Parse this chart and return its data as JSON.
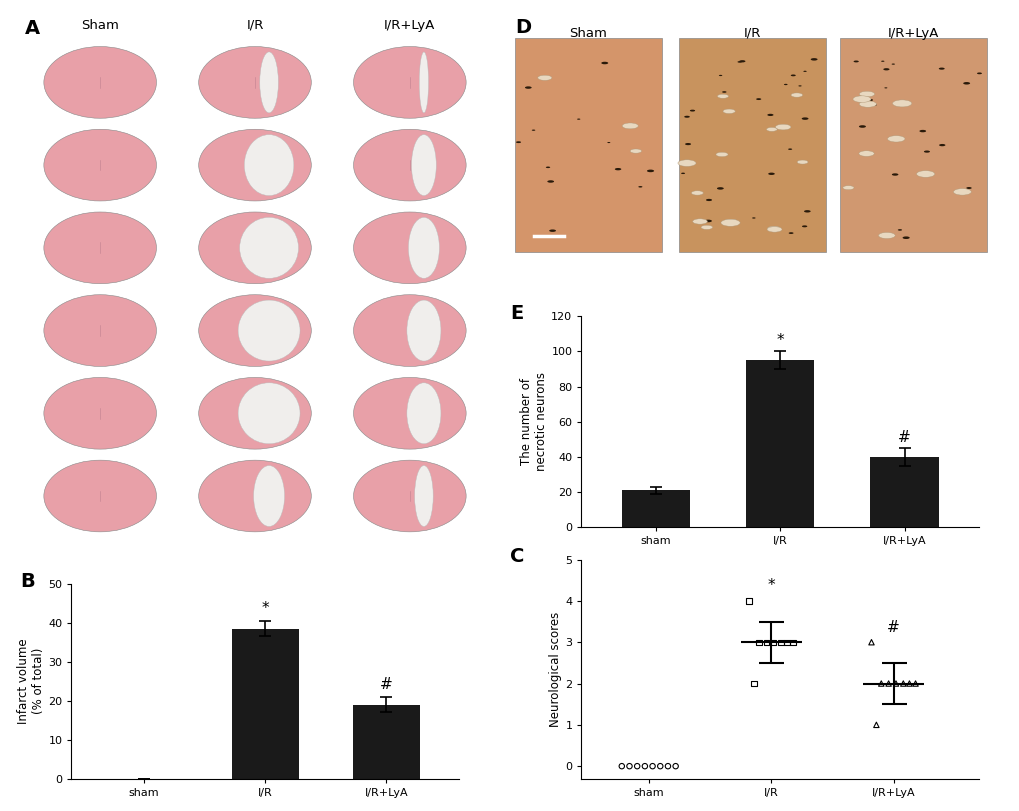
{
  "panel_B": {
    "categories": [
      "sham",
      "I/R",
      "I/R+LyA"
    ],
    "values": [
      0,
      38.5,
      19.0
    ],
    "errors": [
      0,
      2.0,
      2.0
    ],
    "ylabel": "Infarct volume\n(% of total)",
    "ylim": [
      0,
      50
    ],
    "yticks": [
      0,
      10,
      20,
      30,
      40,
      50
    ],
    "bar_color": "#1a1a1a",
    "label": "B"
  },
  "panel_C": {
    "categories": [
      "sham",
      "I/R",
      "I/R+LyA"
    ],
    "ylabel": "Neurological scores",
    "ylim": [
      -0.3,
      5
    ],
    "yticks": [
      0,
      1,
      2,
      3,
      4,
      5
    ],
    "sham_dots": [
      0,
      0,
      0,
      0,
      0,
      0,
      0,
      0
    ],
    "IR_dots": [
      4,
      3,
      3,
      3,
      3,
      3,
      3,
      2
    ],
    "IR_median": 3.0,
    "IR_q1": 2.5,
    "IR_q3": 3.5,
    "IRL_dots": [
      3,
      2,
      2,
      2,
      2,
      2,
      2,
      1
    ],
    "IRL_median": 2.0,
    "IRL_q1": 1.5,
    "IRL_q3": 2.5,
    "label": "C"
  },
  "panel_E": {
    "categories": [
      "sham",
      "I/R",
      "I/R+LyA"
    ],
    "values": [
      21,
      95,
      40
    ],
    "errors": [
      2,
      5,
      5
    ],
    "ylabel": "The number of\nnecrotic neurons",
    "ylim": [
      0,
      120
    ],
    "yticks": [
      0,
      20,
      40,
      60,
      80,
      100,
      120
    ],
    "bar_color": "#1a1a1a",
    "label": "E"
  },
  "panel_labels_fontsize": 14,
  "axis_fontsize": 8.5,
  "tick_fontsize": 8,
  "sig_fontsize": 11,
  "background_color": "#ffffff",
  "brain_pink": "#e8a0a8",
  "brain_white": "#f5f5f5",
  "brain_outline": "#c08888",
  "he_sham": "#d4956a",
  "he_ir": "#c8935e",
  "he_irl": "#d09870"
}
